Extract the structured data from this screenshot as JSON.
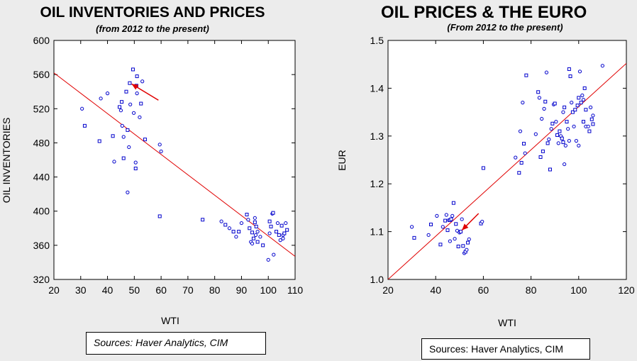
{
  "chart_data": [
    {
      "type": "scatter",
      "title": "OIL INVENTORIES AND PRICES",
      "subtitle": "(from 2012 to the present)",
      "xlabel": "WTI",
      "ylabel": "OIL INVENTORIES",
      "xlim": [
        20,
        110
      ],
      "ylim": [
        320,
        600
      ],
      "xticks": [
        20,
        30,
        40,
        50,
        60,
        70,
        80,
        90,
        100,
        110
      ],
      "yticks": [
        320,
        360,
        400,
        440,
        480,
        520,
        560,
        600
      ],
      "grid": false,
      "marker_color": "#0000cc",
      "line_color": "#e00000",
      "regression_line": [
        [
          20,
          562
        ],
        [
          110,
          347
        ]
      ],
      "arrow": {
        "from": [
          59,
          530
        ],
        "to": [
          49,
          549
        ]
      },
      "source": "Sources:  Haver Analytics, CIM",
      "points": [
        [
          30.5,
          520
        ],
        [
          31.5,
          500
        ],
        [
          37.5,
          532
        ],
        [
          37,
          482
        ],
        [
          40,
          538
        ],
        [
          42,
          488
        ],
        [
          42.5,
          458
        ],
        [
          44.5,
          522
        ],
        [
          45,
          518
        ],
        [
          45.3,
          528
        ],
        [
          45.5,
          500
        ],
        [
          46,
          462
        ],
        [
          46,
          487
        ],
        [
          47,
          540
        ],
        [
          47.5,
          422
        ],
        [
          47.5,
          495
        ],
        [
          48,
          475
        ],
        [
          48.3,
          550
        ],
        [
          48.5,
          525
        ],
        [
          49.5,
          566
        ],
        [
          49.8,
          515
        ],
        [
          50.5,
          450
        ],
        [
          50.5,
          457
        ],
        [
          50.8,
          547
        ],
        [
          51,
          538
        ],
        [
          51,
          558
        ],
        [
          52,
          510
        ],
        [
          52.5,
          526
        ],
        [
          53,
          552
        ],
        [
          54,
          484
        ],
        [
          59.5,
          478
        ],
        [
          59.5,
          394
        ],
        [
          60,
          470
        ],
        [
          75.5,
          390
        ],
        [
          82.5,
          388
        ],
        [
          84,
          384
        ],
        [
          85.5,
          380
        ],
        [
          87,
          376
        ],
        [
          88,
          370
        ],
        [
          89,
          376
        ],
        [
          90,
          386
        ],
        [
          92,
          396
        ],
        [
          92.5,
          390
        ],
        [
          93,
          380
        ],
        [
          93.5,
          364
        ],
        [
          94,
          375
        ],
        [
          94,
          362
        ],
        [
          94.5,
          368
        ],
        [
          95,
          392
        ],
        [
          95,
          387
        ],
        [
          95.3,
          372
        ],
        [
          95.5,
          382
        ],
        [
          96,
          376
        ],
        [
          96,
          364
        ],
        [
          97,
          370
        ],
        [
          98,
          360
        ],
        [
          100,
          343
        ],
        [
          100.5,
          388
        ],
        [
          100.5,
          374
        ],
        [
          101,
          382
        ],
        [
          101.5,
          397
        ],
        [
          101.8,
          398
        ],
        [
          102,
          349
        ],
        [
          103,
          376
        ],
        [
          103.5,
          386
        ],
        [
          104,
          372
        ],
        [
          104.5,
          366
        ],
        [
          105,
          383
        ],
        [
          105.5,
          372
        ],
        [
          106,
          374
        ],
        [
          106.5,
          386
        ],
        [
          107,
          378
        ],
        [
          105.5,
          368
        ]
      ]
    },
    {
      "type": "scatter",
      "title": "OIL PRICES & THE EURO",
      "subtitle": "(From 2012 to the present)",
      "xlabel": "WTI",
      "ylabel": "EUR",
      "xlim": [
        20,
        120
      ],
      "ylim": [
        1.0,
        1.5
      ],
      "xticks": [
        20,
        40,
        60,
        80,
        100,
        120
      ],
      "yticks": [
        1.0,
        1.1,
        1.2,
        1.3,
        1.4,
        1.5
      ],
      "grid": false,
      "marker_color": "#0000cc",
      "line_color": "#e00000",
      "regression_line": [
        [
          20,
          1.0
        ],
        [
          120,
          1.452
        ]
      ],
      "arrow": {
        "from": [
          58,
          1.138
        ],
        "to": [
          51,
          1.103
        ]
      },
      "source": "Sources: Haver Analytics, CIM",
      "points": [
        [
          30,
          1.11
        ],
        [
          31,
          1.087
        ],
        [
          37,
          1.093
        ],
        [
          38,
          1.115
        ],
        [
          40.5,
          1.133
        ],
        [
          42,
          1.073
        ],
        [
          43,
          1.11
        ],
        [
          44,
          1.123
        ],
        [
          44.5,
          1.135
        ],
        [
          45,
          1.103
        ],
        [
          45.5,
          1.124
        ],
        [
          46,
          1.124
        ],
        [
          46,
          1.08
        ],
        [
          46.5,
          1.126
        ],
        [
          47,
          1.133
        ],
        [
          47.5,
          1.16
        ],
        [
          48,
          1.085
        ],
        [
          48.5,
          1.116
        ],
        [
          49,
          1.102
        ],
        [
          49.5,
          1.069
        ],
        [
          50,
          1.098
        ],
        [
          50.5,
          1.1
        ],
        [
          51,
          1.126
        ],
        [
          51.5,
          1.07
        ],
        [
          52,
          1.055
        ],
        [
          52.5,
          1.058
        ],
        [
          53,
          1.062
        ],
        [
          53.5,
          1.077
        ],
        [
          54,
          1.084
        ],
        [
          59,
          1.117
        ],
        [
          59.5,
          1.121
        ],
        [
          60,
          1.233
        ],
        [
          73.5,
          1.255
        ],
        [
          75,
          1.223
        ],
        [
          75.5,
          1.31
        ],
        [
          76,
          1.244
        ],
        [
          76.5,
          1.37
        ],
        [
          77,
          1.284
        ],
        [
          77.5,
          1.264
        ],
        [
          78,
          1.427
        ],
        [
          82,
          1.304
        ],
        [
          83,
          1.392
        ],
        [
          83.5,
          1.38
        ],
        [
          84,
          1.256
        ],
        [
          84.5,
          1.336
        ],
        [
          85,
          1.268
        ],
        [
          85.5,
          1.357
        ],
        [
          86,
          1.372
        ],
        [
          86.5,
          1.433
        ],
        [
          87,
          1.285
        ],
        [
          87.5,
          1.293
        ],
        [
          88,
          1.23
        ],
        [
          88.5,
          1.315
        ],
        [
          89,
          1.326
        ],
        [
          89.5,
          1.366
        ],
        [
          90,
          1.368
        ],
        [
          90.5,
          1.33
        ],
        [
          91,
          1.302
        ],
        [
          91.5,
          1.285
        ],
        [
          92,
          1.31
        ],
        [
          92.5,
          1.3
        ],
        [
          93,
          1.295
        ],
        [
          93.5,
          1.35
        ],
        [
          93.5,
          1.287
        ],
        [
          94,
          1.241
        ],
        [
          94,
          1.36
        ],
        [
          94.5,
          1.28
        ],
        [
          95,
          1.33
        ],
        [
          95.5,
          1.315
        ],
        [
          96,
          1.44
        ],
        [
          96,
          1.29
        ],
        [
          96.5,
          1.425
        ],
        [
          97,
          1.37
        ],
        [
          97.5,
          1.35
        ],
        [
          98,
          1.32
        ],
        [
          98.5,
          1.355
        ],
        [
          99,
          1.29
        ],
        [
          99.5,
          1.364
        ],
        [
          100,
          1.28
        ],
        [
          100,
          1.38
        ],
        [
          100.5,
          1.435
        ],
        [
          101,
          1.37
        ],
        [
          101.5,
          1.385
        ],
        [
          102,
          1.33
        ],
        [
          102,
          1.376
        ],
        [
          102.5,
          1.4
        ],
        [
          103,
          1.32
        ],
        [
          103,
          1.355
        ],
        [
          104,
          1.32
        ],
        [
          104.5,
          1.31
        ],
        [
          105,
          1.36
        ],
        [
          105.5,
          1.335
        ],
        [
          106,
          1.343
        ],
        [
          106,
          1.325
        ],
        [
          110,
          1.447
        ]
      ]
    }
  ]
}
